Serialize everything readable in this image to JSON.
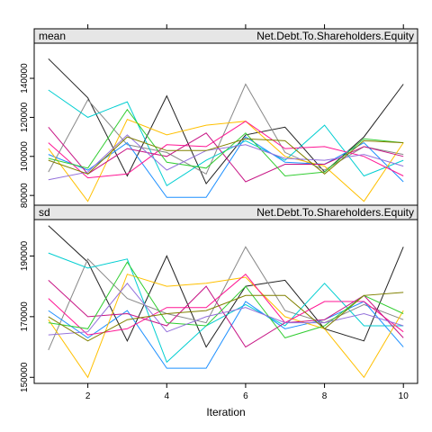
{
  "chart_data": {
    "type": "line",
    "xlabel": "Iteration",
    "x": [
      1,
      2,
      3,
      4,
      5,
      6,
      7,
      8,
      9,
      10
    ],
    "x_ticks": [
      2,
      4,
      6,
      8,
      10
    ],
    "x_tick_labels": [
      "2",
      "4",
      "6",
      "8",
      "10"
    ],
    "series_colors": [
      "#222222",
      "#888888",
      "#00ced1",
      "#1e90ff",
      "#ffc000",
      "#ff1493",
      "#c71585",
      "#32cd32",
      "#9370db",
      "#808000"
    ],
    "panels": [
      {
        "strip_left": "mean",
        "strip_right": "Net.Debt.To.Shareholders.Equity",
        "ylim": [
          75000,
          158000
        ],
        "y_ticks": [
          80000,
          100000,
          120000,
          140000
        ],
        "y_tick_labels": [
          "80000",
          "100000",
          "120000",
          "140000"
        ],
        "series": [
          {
            "values": [
              150000,
              130000,
              90000,
              131000,
              86000,
              111000,
              115000,
              92000,
              110000,
              137000
            ]
          },
          {
            "values": [
              92000,
              129000,
              106000,
              102000,
              91000,
              137000,
              102000,
              93000,
              105000,
              101000
            ]
          },
          {
            "values": [
              134000,
              120000,
              128000,
              85000,
              98000,
              108000,
              98000,
              116000,
              90000,
              98000
            ]
          },
          {
            "values": [
              101000,
              93000,
              107000,
              79000,
              79000,
              110000,
              97000,
              96000,
              107000,
              87000
            ]
          },
          {
            "values": [
              104000,
              77000,
              119000,
              111000,
              116000,
              118000,
              100000,
              95000,
              77000,
              107000
            ]
          },
          {
            "values": [
              107000,
              89000,
              91000,
              106000,
              105000,
              118000,
              104000,
              105000,
              100000,
              90000
            ]
          },
          {
            "values": [
              115000,
              91000,
              104000,
              100000,
              112000,
              87000,
              96000,
              96000,
              105000,
              100000
            ]
          },
          {
            "values": [
              99000,
              94000,
              124000,
              97000,
              94000,
              112000,
              90000,
              92000,
              109000,
              107000
            ]
          },
          {
            "values": [
              88000,
              92000,
              111000,
              93000,
              103000,
              106000,
              99000,
              98000,
              101000,
              95000
            ]
          },
          {
            "values": [
              98000,
              91000,
              110000,
              103000,
              103000,
              109000,
              108000,
              91000,
              108000,
              107000
            ]
          }
        ]
      },
      {
        "strip_left": "sd",
        "strip_right": "Net.Debt.To.Shareholders.Equity",
        "ylim": [
          148000,
          202000
        ],
        "y_ticks": [
          150000,
          170000,
          190000
        ],
        "y_tick_labels": [
          "150000",
          "170000",
          "190000"
        ],
        "series": [
          {
            "values": [
              200000,
              188000,
              162000,
              190000,
              160000,
              180000,
              182000,
              166000,
              162000,
              193000
            ]
          },
          {
            "values": [
              159000,
              189000,
              176000,
              171000,
              168000,
              193000,
              172000,
              168000,
              174000,
              169000
            ]
          },
          {
            "values": [
              191000,
              186000,
              189000,
              155000,
              167000,
              174000,
              167000,
              181000,
              167000,
              167000
            ]
          },
          {
            "values": [
              172000,
              163000,
              172000,
              153000,
              153000,
              175000,
              166000,
              169000,
              175000,
              160000
            ]
          },
          {
            "values": [
              169000,
              150000,
              184000,
              180000,
              181000,
              183000,
              170000,
              166000,
              150000,
              172000
            ]
          },
          {
            "values": [
              176000,
              164000,
              166000,
              173000,
              173000,
              184000,
              168000,
              175000,
              175000,
              165000
            ]
          },
          {
            "values": [
              182000,
              170000,
              171000,
              167000,
              180000,
              160000,
              168000,
              169000,
              177000,
              163000
            ]
          },
          {
            "values": [
              168000,
              166000,
              188000,
              168000,
              167000,
              180000,
              163000,
              167000,
              177000,
              171000
            ]
          },
          {
            "values": [
              164000,
              165000,
              181000,
              165000,
              170000,
              173000,
              168000,
              168000,
              171000,
              167000
            ]
          },
          {
            "values": [
              170000,
              162000,
              169000,
              171000,
              172000,
              177000,
              177000,
              166000,
              177000,
              178000
            ]
          }
        ]
      }
    ]
  }
}
